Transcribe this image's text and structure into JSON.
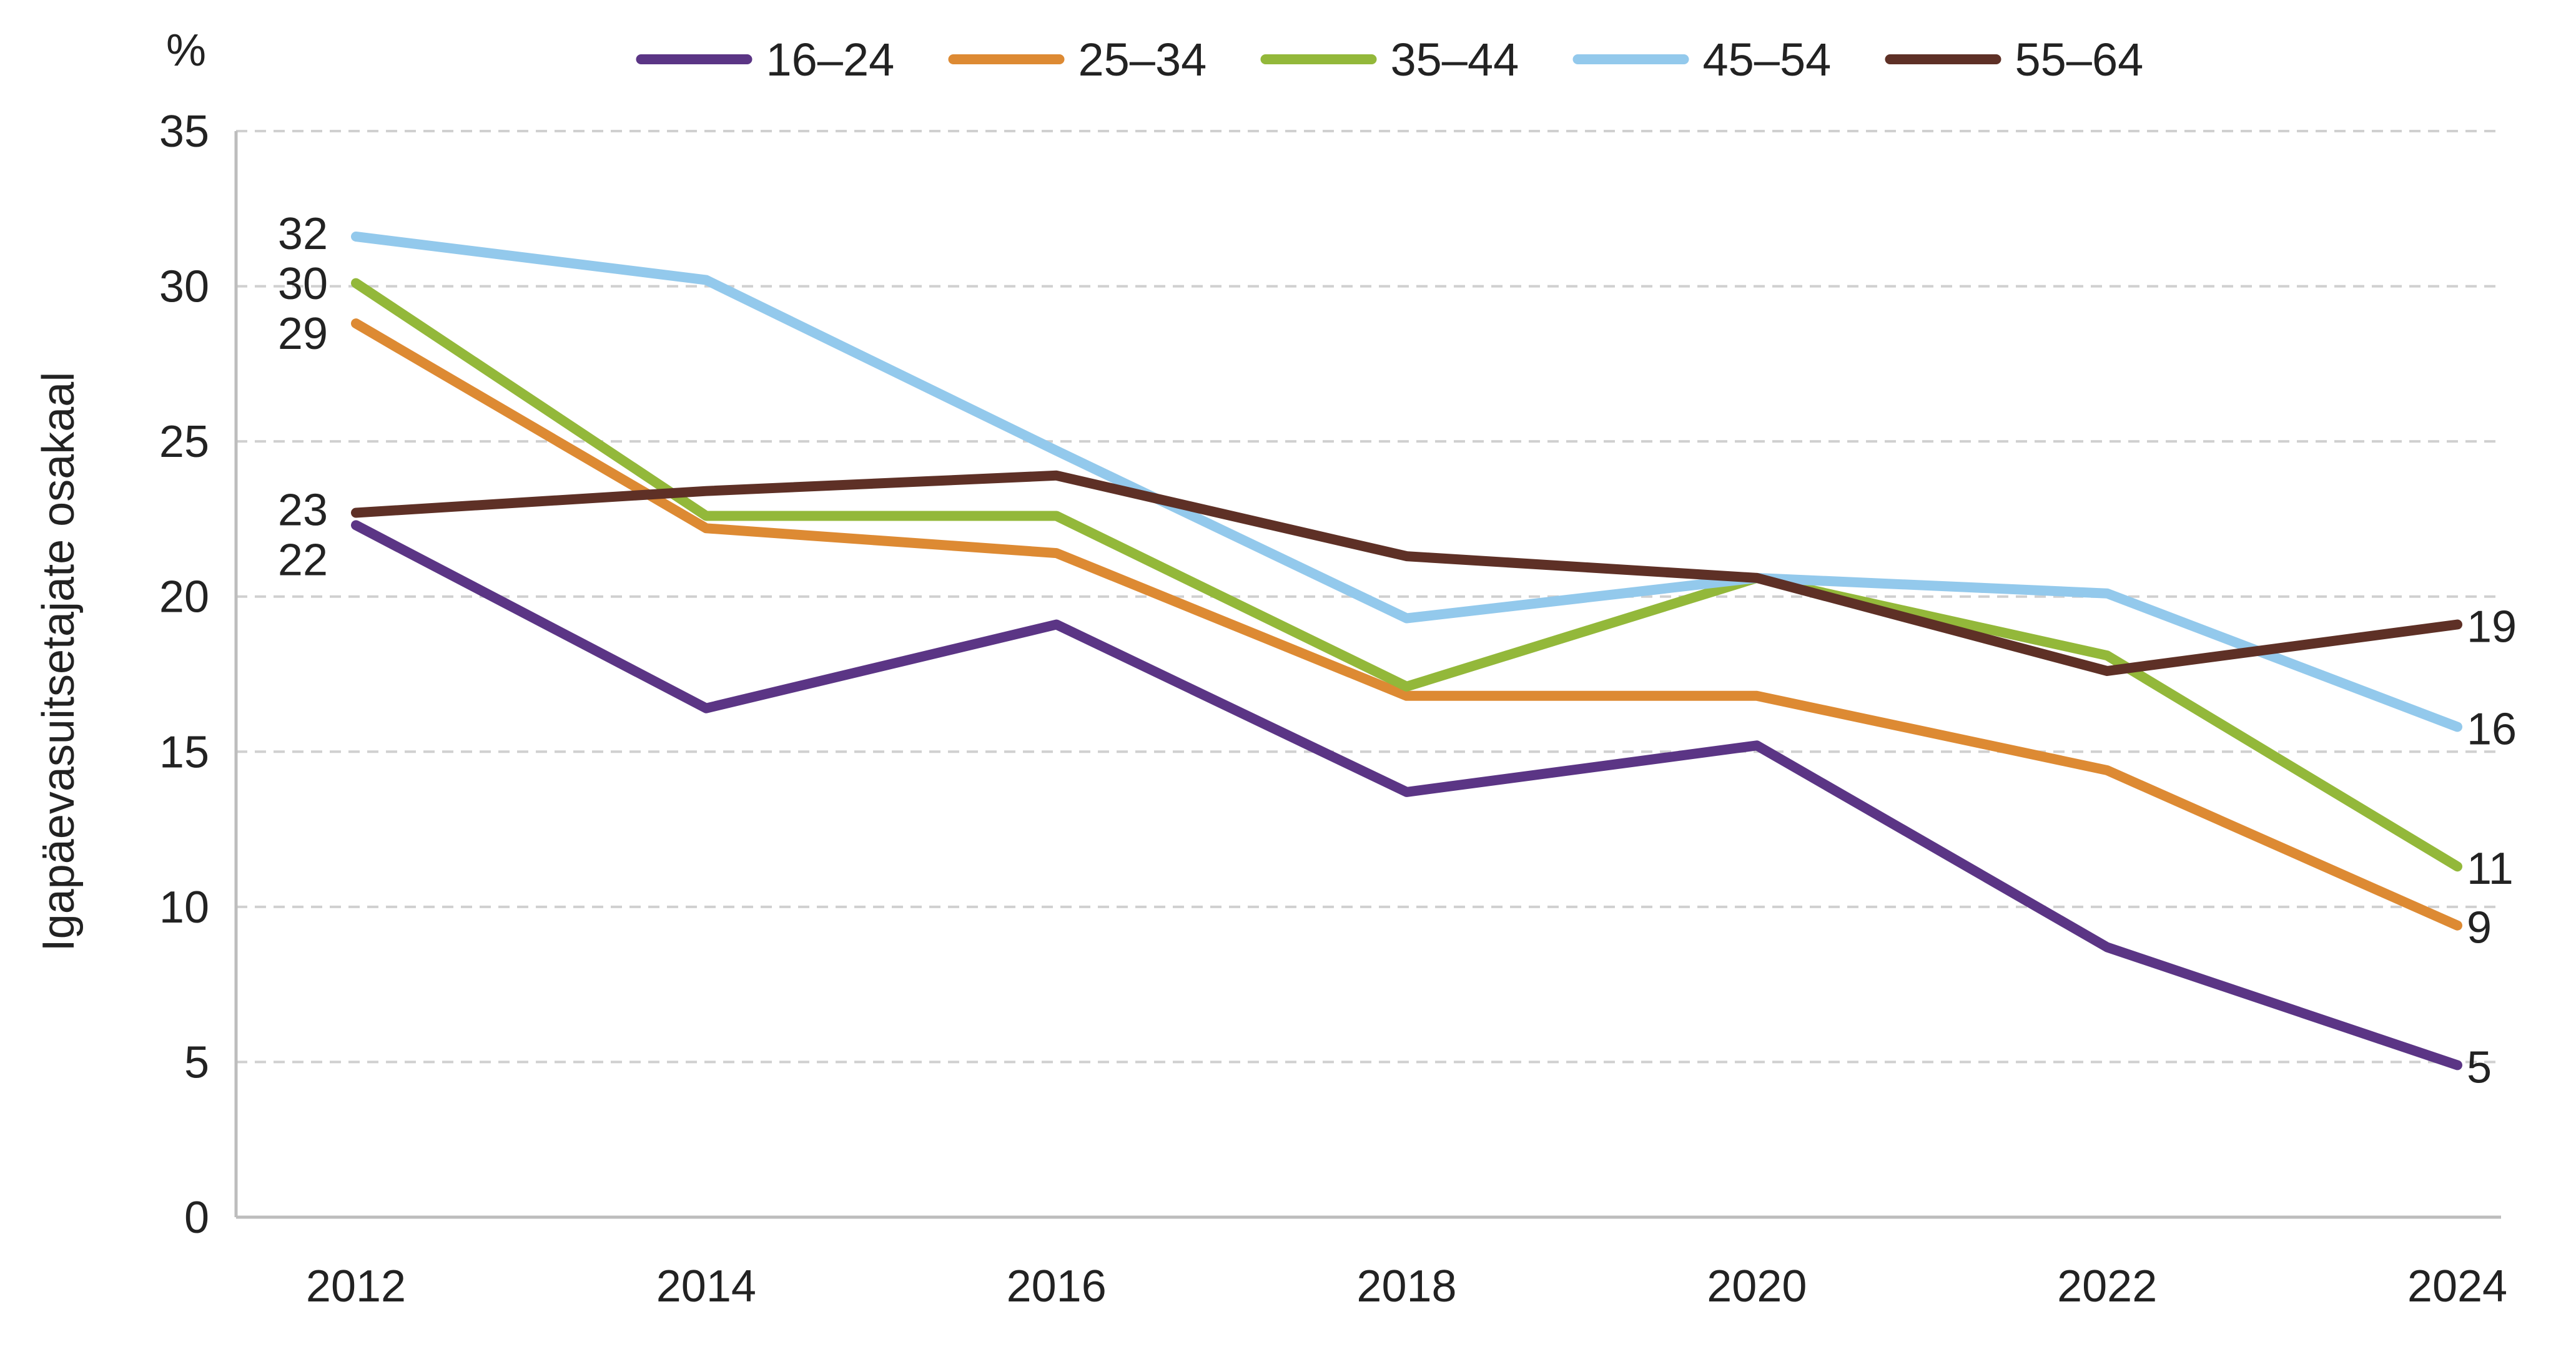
{
  "chart_data": {
    "type": "line",
    "unit_label": "%",
    "ylabel": "Igapäevasuitsetajate osakaal",
    "xlabel": "",
    "x": [
      "2012",
      "2014",
      "2016",
      "2018",
      "2020",
      "2022",
      "2024"
    ],
    "yticks": [
      "0",
      "5",
      "10",
      "15",
      "20",
      "25",
      "30",
      "35"
    ],
    "ylim": [
      0,
      35
    ],
    "grid": "horizontal dashed",
    "legend_position": "top",
    "series": [
      {
        "name": "16–24",
        "color": "#5b3585",
        "values": [
          22.3,
          16.4,
          19.1,
          13.7,
          15.2,
          8.7,
          4.9
        ]
      },
      {
        "name": "25–34",
        "color": "#dd8a33",
        "values": [
          28.8,
          22.2,
          21.4,
          16.8,
          16.8,
          14.4,
          9.4
        ]
      },
      {
        "name": "35–44",
        "color": "#93b83a",
        "values": [
          30.1,
          22.6,
          22.6,
          17.1,
          20.6,
          18.1,
          11.3
        ]
      },
      {
        "name": "45–54",
        "color": "#93c9ec",
        "values": [
          31.6,
          30.2,
          24.7,
          19.3,
          20.6,
          20.1,
          15.8
        ]
      },
      {
        "name": "55–64",
        "color": "#5e3026",
        "values": [
          22.7,
          23.4,
          23.9,
          21.3,
          20.6,
          17.6,
          19.1
        ]
      }
    ],
    "start_labels": [
      {
        "series": "45–54",
        "text": "32"
      },
      {
        "series": "35–44",
        "text": "30"
      },
      {
        "series": "25–34",
        "text": "29"
      },
      {
        "series": "55–64",
        "text": "23"
      },
      {
        "series": "16–24",
        "text": "22"
      }
    ],
    "end_labels": [
      {
        "series": "55–64",
        "text": "19"
      },
      {
        "series": "45–54",
        "text": "16"
      },
      {
        "series": "35–44",
        "text": "11"
      },
      {
        "series": "25–34",
        "text": "9"
      },
      {
        "series": "16–24",
        "text": "5"
      }
    ]
  }
}
